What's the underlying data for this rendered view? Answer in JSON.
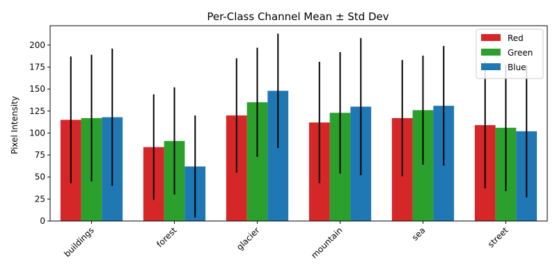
{
  "chart_data": {
    "type": "bar",
    "title": "Per-Class Channel Mean ± Std Dev",
    "xlabel": "",
    "ylabel": "Pixel Intensity",
    "categories": [
      "buildings",
      "forest",
      "glacier",
      "mountain",
      "sea",
      "street"
    ],
    "ylim": [
      0,
      222
    ],
    "yticks": [
      0,
      25,
      50,
      75,
      100,
      125,
      150,
      175,
      200
    ],
    "grid": false,
    "legend_position": "top-right",
    "error_bar_color": "#000000",
    "series": [
      {
        "name": "Red",
        "color": "#d62728",
        "values": [
          115,
          84,
          120,
          112,
          117,
          109
        ],
        "std": [
          72,
          60,
          65,
          69,
          66,
          72
        ]
      },
      {
        "name": "Green",
        "color": "#2ca02c",
        "values": [
          117,
          91,
          135,
          123,
          126,
          106
        ],
        "std": [
          72,
          61,
          62,
          69,
          62,
          72
        ]
      },
      {
        "name": "Blue",
        "color": "#1f77b4",
        "values": [
          118,
          62,
          148,
          130,
          131,
          102
        ],
        "std": [
          78,
          58,
          65,
          78,
          68,
          75
        ]
      }
    ]
  }
}
